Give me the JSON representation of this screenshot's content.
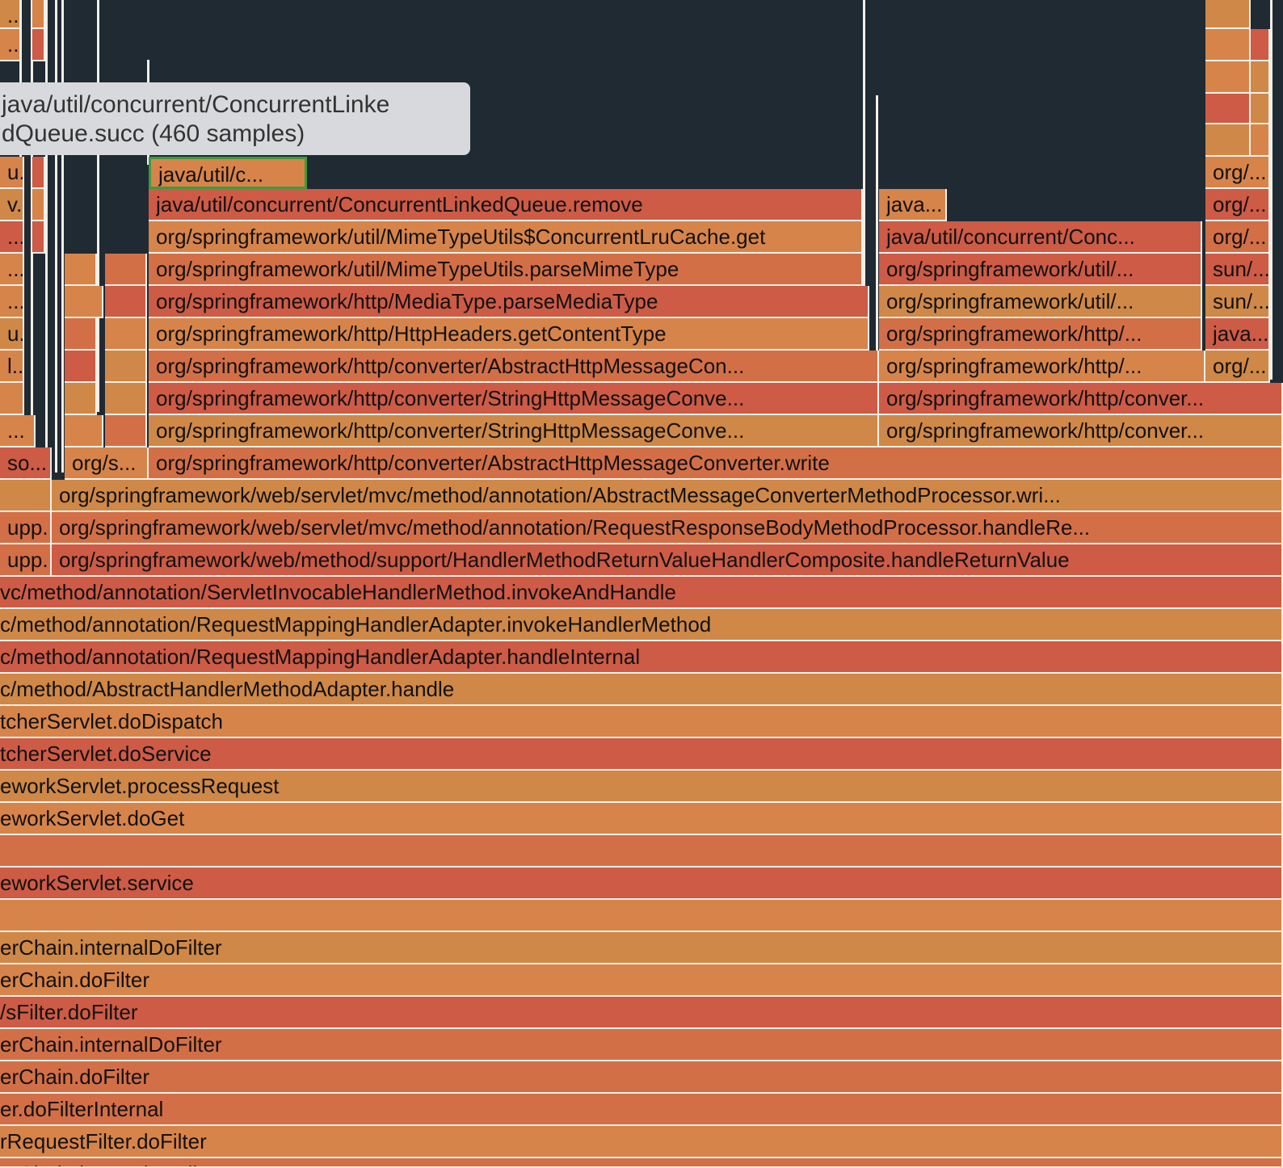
{
  "tooltip": {
    "line1": "java/util/concurrent/ConcurrentLinke",
    "line2": "dQueue.succ (460 samples)"
  },
  "frames": {
    "f_top_1": "...",
    "f_top_2": "...",
    "f_r4_a": "u...",
    "f_r4_b": "java/util/c...",
    "f_r4_c": "org/...",
    "f_r5_a": "v...",
    "f_r5_b": "java/util/concurrent/ConcurrentLinkedQueue.remove",
    "f_r5_c": "java...",
    "f_r5_d": "org/...",
    "f_r6_a": "...",
    "f_r6_b": "org/springframework/util/MimeTypeUtils$ConcurrentLruCache.get",
    "f_r6_c": "java/util/concurrent/Conc...",
    "f_r6_d": "org/...",
    "f_r7_a": "...",
    "f_r7_b": "org/springframework/util/MimeTypeUtils.parseMimeType",
    "f_r7_c": "org/springframework/util/...",
    "f_r7_d": "sun/...",
    "f_r8_a": "...",
    "f_r8_b": "org/springframework/http/MediaType.parseMediaType",
    "f_r8_c": "org/springframework/util/...",
    "f_r8_d": "sun/...",
    "f_r9_a": "u...",
    "f_r9_b": "org/springframework/http/HttpHeaders.getContentType",
    "f_r9_c": "org/springframework/http/...",
    "f_r9_d": "java...",
    "f_r10_a": "l...",
    "f_r10_b": "org/springframework/http/converter/AbstractHttpMessageCon...",
    "f_r10_c": "org/springframework/http/...",
    "f_r10_d": "org/...",
    "f_r11_b": "org/springframework/http/converter/StringHttpMessageConve...",
    "f_r11_c": "org/springframework/http/conver...",
    "f_r12_a": "...",
    "f_r12_b": "org/springframework/http/converter/StringHttpMessageConve...",
    "f_r12_c": "org/springframework/http/conver...",
    "f_r13_a": "so...",
    "f_r13_b": "org/s...",
    "f_r13_c": "org/springframework/http/converter/AbstractHttpMessageConverter.write",
    "f_r14": "org/springframework/web/servlet/mvc/method/annotation/AbstractMessageConverterMethodProcessor.wri...",
    "f_r15_a": "upp...",
    "f_r15_b": "org/springframework/web/servlet/mvc/method/annotation/RequestResponseBodyMethodProcessor.handleRe...",
    "f_r16_a": "upp...",
    "f_r16_b": "org/springframework/web/method/support/HandlerMethodReturnValueHandlerComposite.handleReturnValue",
    "f_r17": "vc/method/annotation/ServletInvocableHandlerMethod.invokeAndHandle",
    "f_r18": "c/method/annotation/RequestMappingHandlerAdapter.invokeHandlerMethod",
    "f_r19": "c/method/annotation/RequestMappingHandlerAdapter.handleInternal",
    "f_r20": "c/method/AbstractHandlerMethodAdapter.handle",
    "f_r21": "tcherServlet.doDispatch",
    "f_r22": "tcherServlet.doService",
    "f_r23": "eworkServlet.processRequest",
    "f_r24": "eworkServlet.doGet",
    "f_r25": "",
    "f_r26": "eworkServlet.service",
    "f_r27": "",
    "f_r28": "erChain.internalDoFilter",
    "f_r29": "erChain.doFilter",
    "f_r30": "/sFilter.doFilter",
    "f_r31": "erChain.internalDoFilter",
    "f_r32": "erChain.doFilter",
    "f_r33": "er.doFilterInternal",
    "f_r34": "rRequestFilter.doFilter",
    "f_r35": "erChain.internalDoFilter"
  },
  "colors": {
    "background": "#202a33",
    "frame_red": "#cd5b45",
    "frame_orange": "#d7844a",
    "frame_mid": "#d36f47",
    "frame_tan": "#cf8847",
    "selected_border": "#3e9a3e",
    "tooltip_bg": "#d7d9dc"
  }
}
